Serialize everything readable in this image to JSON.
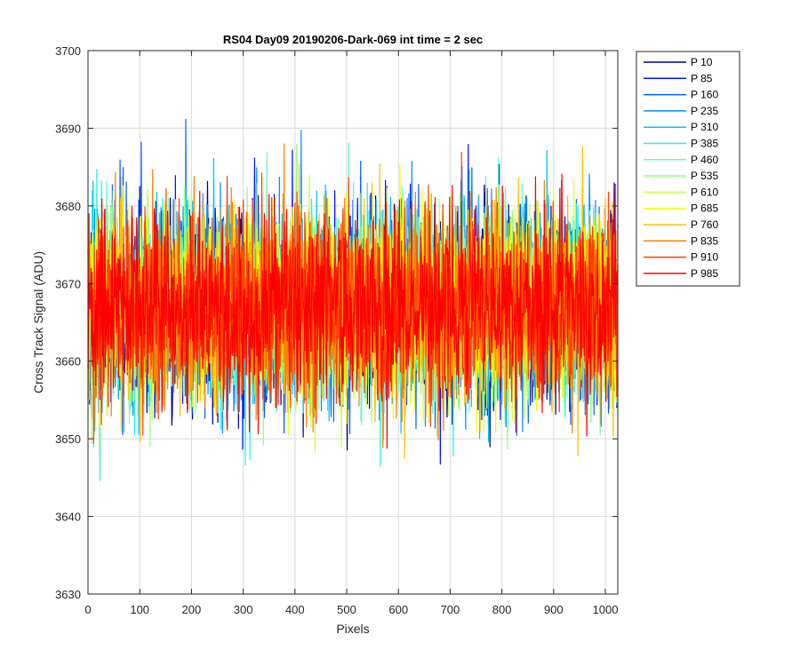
{
  "chart_data": {
    "type": "line",
    "title": "RS04 Day09 20190206-Dark-069 int time = 2 sec",
    "xlabel": "Pixels",
    "ylabel": "Cross Track Signal (ADU)",
    "xlim": [
      0,
      1024
    ],
    "ylim": [
      3630,
      3700
    ],
    "xticks": [
      0,
      100,
      200,
      300,
      400,
      500,
      600,
      700,
      800,
      900,
      1000
    ],
    "yticks": [
      3630,
      3640,
      3650,
      3660,
      3670,
      3680,
      3690,
      3700
    ],
    "grid": true,
    "legend_position": "outside-top-right",
    "series": [
      {
        "name": "P 10",
        "color": "#00008f",
        "mean": 3667,
        "spread": 6
      },
      {
        "name": "P 85",
        "color": "#0010ff",
        "mean": 3667,
        "spread": 6
      },
      {
        "name": "P 160",
        "color": "#0060ff",
        "mean": 3667,
        "spread": 6
      },
      {
        "name": "P 235",
        "color": "#0090ff",
        "mean": 3667,
        "spread": 6
      },
      {
        "name": "P 310",
        "color": "#00c0ff",
        "mean": 3667,
        "spread": 6
      },
      {
        "name": "P 385",
        "color": "#20f0f0",
        "mean": 3667,
        "spread": 6
      },
      {
        "name": "P 460",
        "color": "#60ffc0",
        "mean": 3667,
        "spread": 6
      },
      {
        "name": "P 535",
        "color": "#90ff80",
        "mean": 3667,
        "spread": 6
      },
      {
        "name": "P 610",
        "color": "#c8ff38",
        "mean": 3667,
        "spread": 6
      },
      {
        "name": "P 685",
        "color": "#f0ff00",
        "mean": 3667,
        "spread": 6
      },
      {
        "name": "P 760",
        "color": "#ffc000",
        "mean": 3667,
        "spread": 6
      },
      {
        "name": "P 835",
        "color": "#ff8000",
        "mean": 3667,
        "spread": 6
      },
      {
        "name": "P 910",
        "color": "#ff4000",
        "mean": 3667,
        "spread": 6
      },
      {
        "name": "P 985",
        "color": "#ff0000",
        "mean": 3667,
        "spread": 6
      }
    ]
  }
}
